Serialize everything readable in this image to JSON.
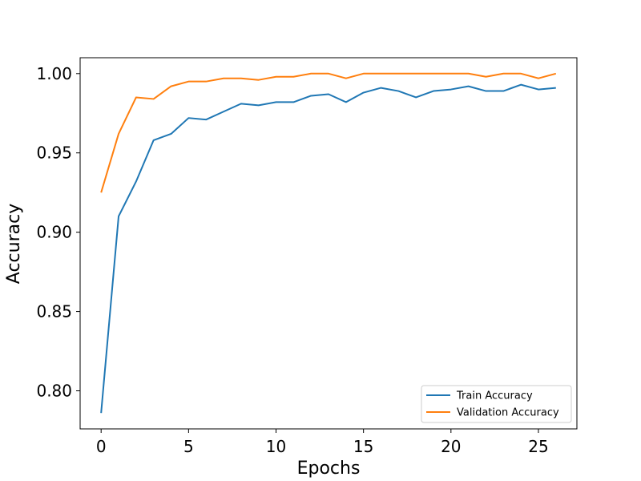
{
  "chart_data": {
    "type": "line",
    "title": "",
    "xlabel": "Epochs",
    "ylabel": "Accuracy",
    "xlim": [
      -1.2,
      27.2
    ],
    "ylim": [
      0.776,
      1.01
    ],
    "x_ticks": [
      0,
      5,
      10,
      15,
      20,
      25
    ],
    "y_ticks": [
      0.8,
      0.85,
      0.9,
      0.95,
      1.0
    ],
    "y_tick_labels": [
      "0.80",
      "0.85",
      "0.90",
      "0.95",
      "1.00"
    ],
    "grid": false,
    "legend_position": "lower-right",
    "x": [
      0,
      1,
      2,
      3,
      4,
      5,
      6,
      7,
      8,
      9,
      10,
      11,
      12,
      13,
      14,
      15,
      16,
      17,
      18,
      19,
      20,
      21,
      22,
      23,
      24,
      25,
      26
    ],
    "series": [
      {
        "name": "Train Accuracy",
        "color": "#1f77b4",
        "values": [
          0.786,
          0.91,
          0.932,
          0.958,
          0.962,
          0.972,
          0.971,
          0.976,
          0.981,
          0.98,
          0.982,
          0.982,
          0.986,
          0.987,
          0.982,
          0.988,
          0.991,
          0.989,
          0.985,
          0.989,
          0.99,
          0.992,
          0.989,
          0.989,
          0.993,
          0.99,
          0.991
        ]
      },
      {
        "name": "Validation Accuracy",
        "color": "#ff7f0e",
        "values": [
          0.925,
          0.962,
          0.985,
          0.984,
          0.992,
          0.995,
          0.995,
          0.997,
          0.997,
          0.996,
          0.998,
          0.998,
          1.0,
          1.0,
          0.997,
          1.0,
          1.0,
          1.0,
          1.0,
          1.0,
          1.0,
          1.0,
          0.998,
          1.0,
          1.0,
          0.997,
          1.0
        ]
      }
    ]
  }
}
